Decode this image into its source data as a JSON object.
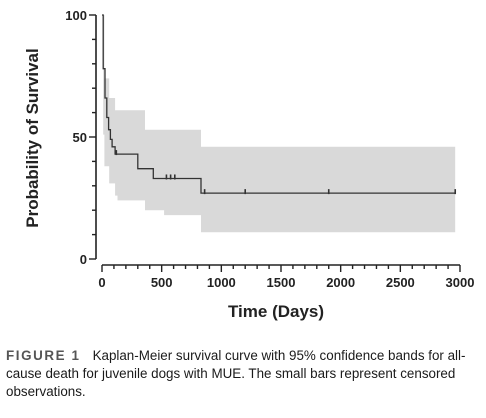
{
  "chart_data": {
    "type": "line",
    "subtype": "kaplan-meier",
    "xlabel": "Time (Days)",
    "ylabel": "Probability of Survival",
    "xlim": [
      0,
      3000
    ],
    "ylim": [
      0,
      100
    ],
    "x_ticks": [
      0,
      500,
      1000,
      1500,
      2000,
      2500,
      3000
    ],
    "y_ticks": [
      0,
      50,
      100
    ],
    "x_minor_step": 100,
    "y_minor_step": 10,
    "grid": false,
    "colors": {
      "curve": "#333333",
      "band": "#d9d9d9",
      "axis": "#222222"
    },
    "survival_curve": [
      [
        0,
        100
      ],
      [
        10,
        78
      ],
      [
        25,
        66
      ],
      [
        40,
        58
      ],
      [
        55,
        53
      ],
      [
        70,
        49
      ],
      [
        85,
        46
      ],
      [
        110,
        43
      ],
      [
        300,
        37
      ],
      [
        430,
        33
      ],
      [
        830,
        27
      ],
      [
        2960,
        27
      ]
    ],
    "ci_upper": [
      [
        0,
        100
      ],
      [
        20,
        74
      ],
      [
        60,
        66
      ],
      [
        110,
        61
      ],
      [
        330,
        61
      ],
      [
        360,
        53
      ],
      [
        830,
        53
      ],
      [
        830,
        46
      ],
      [
        2960,
        46
      ]
    ],
    "ci_lower": [
      [
        0,
        100
      ],
      [
        10,
        51
      ],
      [
        20,
        38
      ],
      [
        60,
        31
      ],
      [
        110,
        26
      ],
      [
        130,
        24
      ],
      [
        330,
        24
      ],
      [
        360,
        20
      ],
      [
        520,
        18
      ],
      [
        830,
        18
      ],
      [
        830,
        11
      ],
      [
        2960,
        11
      ]
    ],
    "censored": [
      [
        120,
        43
      ],
      [
        540,
        33
      ],
      [
        575,
        33
      ],
      [
        610,
        33
      ],
      [
        860,
        27
      ],
      [
        1200,
        27
      ],
      [
        1900,
        27
      ],
      [
        2960,
        27
      ]
    ]
  },
  "caption": {
    "label": "FIGURE 1",
    "text": "Kaplan-Meier survival curve with 95% confidence bands for all-cause death for juvenile dogs with MUE. The small bars represent censored observations."
  }
}
